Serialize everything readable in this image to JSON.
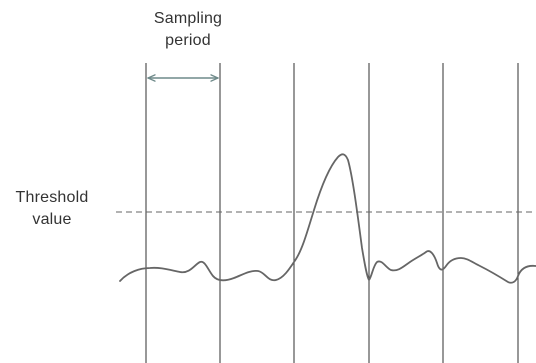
{
  "labels": {
    "sampling_period": [
      "Sampling",
      "period"
    ],
    "threshold_value": [
      "Threshold",
      "value"
    ]
  },
  "colors": {
    "background": "#ffffff",
    "text": "#333333",
    "sampling_lines": "#444444",
    "signal": "#666666",
    "threshold_line": "#666666",
    "period_arrow": "#6f8a8a"
  }
}
